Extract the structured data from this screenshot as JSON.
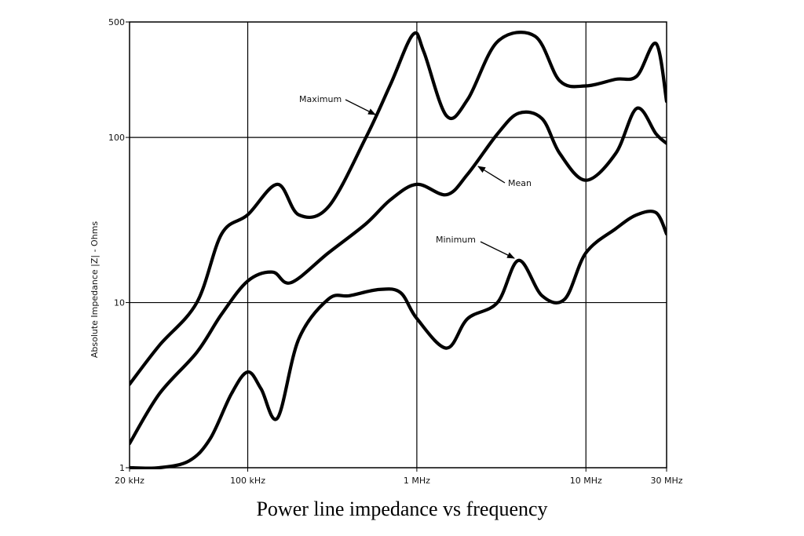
{
  "caption": "Power line impedance vs frequency",
  "chart_data": {
    "type": "line",
    "title": "",
    "xlabel": "",
    "ylabel": "Absolute Impedance |Z| - Ohms",
    "x_scale": "log",
    "y_scale": "log",
    "xlim": [
      20000,
      30000000
    ],
    "ylim": [
      1,
      500
    ],
    "x_ticks": [
      {
        "value": 20000,
        "label": "20 kHz"
      },
      {
        "value": 100000,
        "label": "100 kHz"
      },
      {
        "value": 1000000,
        "label": "1 MHz"
      },
      {
        "value": 10000000,
        "label": "10 MHz"
      },
      {
        "value": 30000000,
        "label": "30 MHz"
      }
    ],
    "y_ticks": [
      {
        "value": 1,
        "label": "1"
      },
      {
        "value": 10,
        "label": "10"
      },
      {
        "value": 100,
        "label": "100"
      },
      {
        "value": 500,
        "label": "500"
      }
    ],
    "grid": true,
    "line_color": "#000000",
    "series": [
      {
        "name": "Maximum",
        "points": [
          [
            20000,
            3.2
          ],
          [
            30000,
            5.5
          ],
          [
            50000,
            10
          ],
          [
            70000,
            26
          ],
          [
            100000,
            34
          ],
          [
            150000,
            52
          ],
          [
            200000,
            34
          ],
          [
            300000,
            38
          ],
          [
            500000,
            100
          ],
          [
            700000,
            210
          ],
          [
            950000,
            420
          ],
          [
            1100000,
            330
          ],
          [
            1500000,
            135
          ],
          [
            2000000,
            170
          ],
          [
            3000000,
            380
          ],
          [
            5000000,
            410
          ],
          [
            7000000,
            220
          ],
          [
            10000000,
            205
          ],
          [
            15000000,
            225
          ],
          [
            20000000,
            235
          ],
          [
            26000000,
            370
          ],
          [
            30000000,
            165
          ]
        ]
      },
      {
        "name": "Mean",
        "points": [
          [
            20000,
            1.4
          ],
          [
            30000,
            2.8
          ],
          [
            50000,
            5
          ],
          [
            70000,
            8.5
          ],
          [
            100000,
            13.5
          ],
          [
            140000,
            15.3
          ],
          [
            180000,
            13.2
          ],
          [
            300000,
            20
          ],
          [
            500000,
            30
          ],
          [
            700000,
            42
          ],
          [
            1000000,
            52
          ],
          [
            1500000,
            45
          ],
          [
            2000000,
            60
          ],
          [
            3000000,
            105
          ],
          [
            4000000,
            140
          ],
          [
            5500000,
            130
          ],
          [
            7000000,
            80
          ],
          [
            10000000,
            55
          ],
          [
            15000000,
            80
          ],
          [
            20000000,
            150
          ],
          [
            26000000,
            105
          ],
          [
            30000000,
            92
          ]
        ]
      },
      {
        "name": "Minimum",
        "points": [
          [
            20000,
            1.0
          ],
          [
            30000,
            1.0
          ],
          [
            45000,
            1.1
          ],
          [
            60000,
            1.5
          ],
          [
            80000,
            2.8
          ],
          [
            100000,
            3.8
          ],
          [
            120000,
            3.0
          ],
          [
            150000,
            2.0
          ],
          [
            200000,
            6.0
          ],
          [
            300000,
            10.5
          ],
          [
            400000,
            11
          ],
          [
            600000,
            12
          ],
          [
            800000,
            11.5
          ],
          [
            1000000,
            8
          ],
          [
            1500000,
            5.3
          ],
          [
            2000000,
            8
          ],
          [
            3000000,
            10
          ],
          [
            4000000,
            18
          ],
          [
            5500000,
            11
          ],
          [
            7500000,
            10.5
          ],
          [
            10000000,
            20
          ],
          [
            15000000,
            28
          ],
          [
            20000000,
            34
          ],
          [
            26000000,
            35
          ],
          [
            30000000,
            26
          ]
        ]
      }
    ],
    "annotations": [
      {
        "text": "Maximum",
        "series": "Maximum"
      },
      {
        "text": "Mean",
        "series": "Mean"
      },
      {
        "text": "Minimum",
        "series": "Minimum"
      }
    ]
  }
}
